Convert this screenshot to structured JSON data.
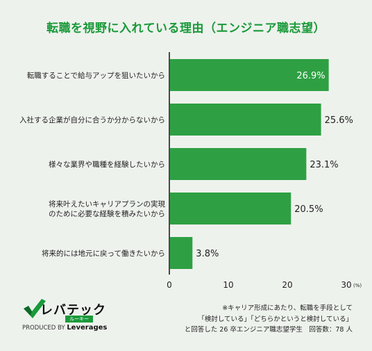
{
  "title": "転職を視野に入れている理由（エンジニア職志望）",
  "chart_data": {
    "type": "bar",
    "orientation": "horizontal",
    "categories": [
      "転職することで給与アップを狙いたいから",
      "入社する企業が自分に合うか分からないから",
      "様々な業界や職種を経験したいから",
      "将来叶えたいキャリアプランの実現\nのために必要な経験を積みたいから",
      "将来的には地元に戻って働きたいから"
    ],
    "values": [
      26.9,
      25.6,
      23.1,
      20.5,
      3.8
    ],
    "value_labels": [
      "26.9%",
      "25.6%",
      "23.1%",
      "20.5%",
      "3.8%"
    ],
    "xlim": [
      0,
      30
    ],
    "xticks": [
      0,
      10,
      20,
      30
    ],
    "x_unit": "(%)",
    "bar_color": "#2ea043",
    "grid": false
  },
  "logo": {
    "name": "レバテック",
    "sub": "ルーキー",
    "produced_by": "PRODUCED BY",
    "company": "Leverages"
  },
  "notes": [
    "※キャリア形成にあたり、転職を手段として",
    "「検討している」「どちらかというと検討している」",
    "と回答した 26 卒エンジニア職志望学生　回答数：78 人"
  ]
}
